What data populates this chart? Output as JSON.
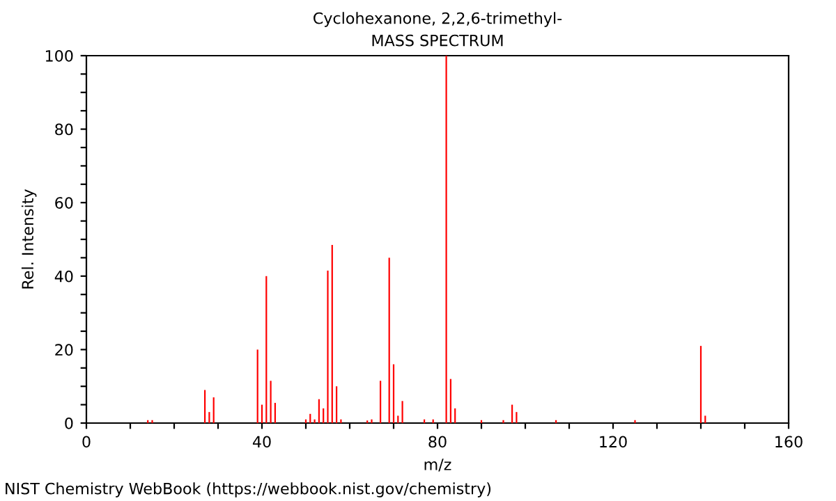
{
  "chart_data": {
    "type": "bar",
    "title": "Cyclohexanone, 2,2,6-trimethyl-",
    "subtitle": "MASS SPECTRUM",
    "xlabel": "m/z",
    "ylabel": "Rel. Intensity",
    "x": [
      14,
      15,
      27,
      28,
      29,
      39,
      40,
      41,
      42,
      43,
      50,
      51,
      52,
      53,
      54,
      55,
      56,
      57,
      58,
      64,
      65,
      67,
      69,
      70,
      71,
      72,
      77,
      79,
      82,
      83,
      84,
      90,
      95,
      97,
      98,
      107,
      125,
      140,
      141
    ],
    "values": [
      0.8,
      0.8,
      9,
      3,
      7,
      20,
      5,
      40,
      11.5,
      5.5,
      1,
      2.5,
      1,
      6.5,
      4,
      41.5,
      48.5,
      10,
      1,
      0.7,
      1,
      11.5,
      45,
      16,
      2,
      6,
      1,
      1,
      100,
      12,
      4,
      0.8,
      0.8,
      5,
      3,
      0.8,
      0.8,
      21,
      2
    ],
    "color": "#ff0000",
    "xlim": [
      0,
      160
    ],
    "ylim": [
      0,
      100
    ],
    "xticks": [
      0,
      {
        "value": 10,
        "label": null
      },
      {
        "value": 20,
        "label": null
      },
      {
        "value": 30,
        "label": null
      },
      {
        "value": 40,
        "label": "40"
      },
      {
        "value": 50,
        "label": null
      },
      {
        "value": 60,
        "label": null
      },
      {
        "value": 70,
        "label": null
      },
      {
        "value": 80,
        "label": "80"
      },
      {
        "value": 90,
        "label": null
      },
      {
        "value": 100,
        "label": null
      },
      {
        "value": 110,
        "label": null
      },
      {
        "value": 120,
        "label": "120"
      },
      {
        "value": 130,
        "label": null
      },
      {
        "value": 140,
        "label": null
      },
      {
        "value": 150,
        "label": null
      },
      {
        "value": 160,
        "label": "160"
      }
    ],
    "yticks": [
      0,
      {
        "value": 5,
        "label": null
      },
      {
        "value": 10,
        "label": null
      },
      {
        "value": 15,
        "label": null
      },
      20,
      {
        "value": 25,
        "label": null
      },
      {
        "value": 30,
        "label": null
      },
      {
        "value": 35,
        "label": null
      },
      40,
      {
        "value": 45,
        "label": null
      },
      {
        "value": 50,
        "label": null
      },
      {
        "value": 55,
        "label": null
      },
      60,
      {
        "value": 65,
        "label": null
      },
      {
        "value": 70,
        "label": null
      },
      {
        "value": 75,
        "label": null
      },
      80,
      {
        "value": 85,
        "label": null
      },
      {
        "value": 90,
        "label": null
      },
      {
        "value": 95,
        "label": null
      },
      100
    ],
    "grid": false,
    "annotations": [
      "NIST Chemistry WebBook (https://webbook.nist.gov/chemistry)"
    ]
  }
}
